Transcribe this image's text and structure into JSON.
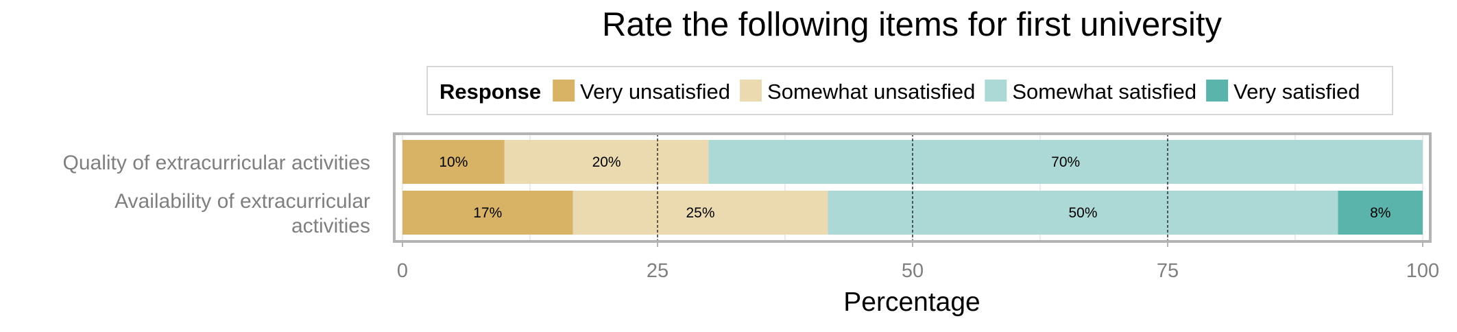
{
  "chart_data": {
    "type": "bar",
    "orientation": "horizontal",
    "stacked": true,
    "title": "Rate the following items for first university",
    "xlabel": "Percentage",
    "ylabel": "",
    "xlim": [
      0,
      100
    ],
    "x_ticks": [
      "0",
      "25",
      "50",
      "75",
      "100"
    ],
    "grid": true,
    "legend_position": "top",
    "legend_title": "Response",
    "categories": [
      [
        "Quality of extracurricular activities"
      ],
      [
        "Availability of extracurricular",
        "activities"
      ]
    ],
    "series": [
      {
        "name": "Very unsatisfied",
        "color": "#d8b365",
        "values": [
          10,
          16.7
        ],
        "labels": [
          "10%",
          "17%"
        ]
      },
      {
        "name": "Somewhat unsatisfied",
        "color": "#ebdab0",
        "values": [
          20,
          25
        ],
        "labels": [
          "20%",
          "25%"
        ]
      },
      {
        "name": "Somewhat satisfied",
        "color": "#acd9d5",
        "values": [
          70,
          50
        ],
        "labels": [
          "70%",
          "50%"
        ]
      },
      {
        "name": "Very satisfied",
        "color": "#5ab4ac",
        "values": [
          0,
          8.3
        ],
        "labels": [
          "",
          "8%"
        ]
      }
    ]
  }
}
